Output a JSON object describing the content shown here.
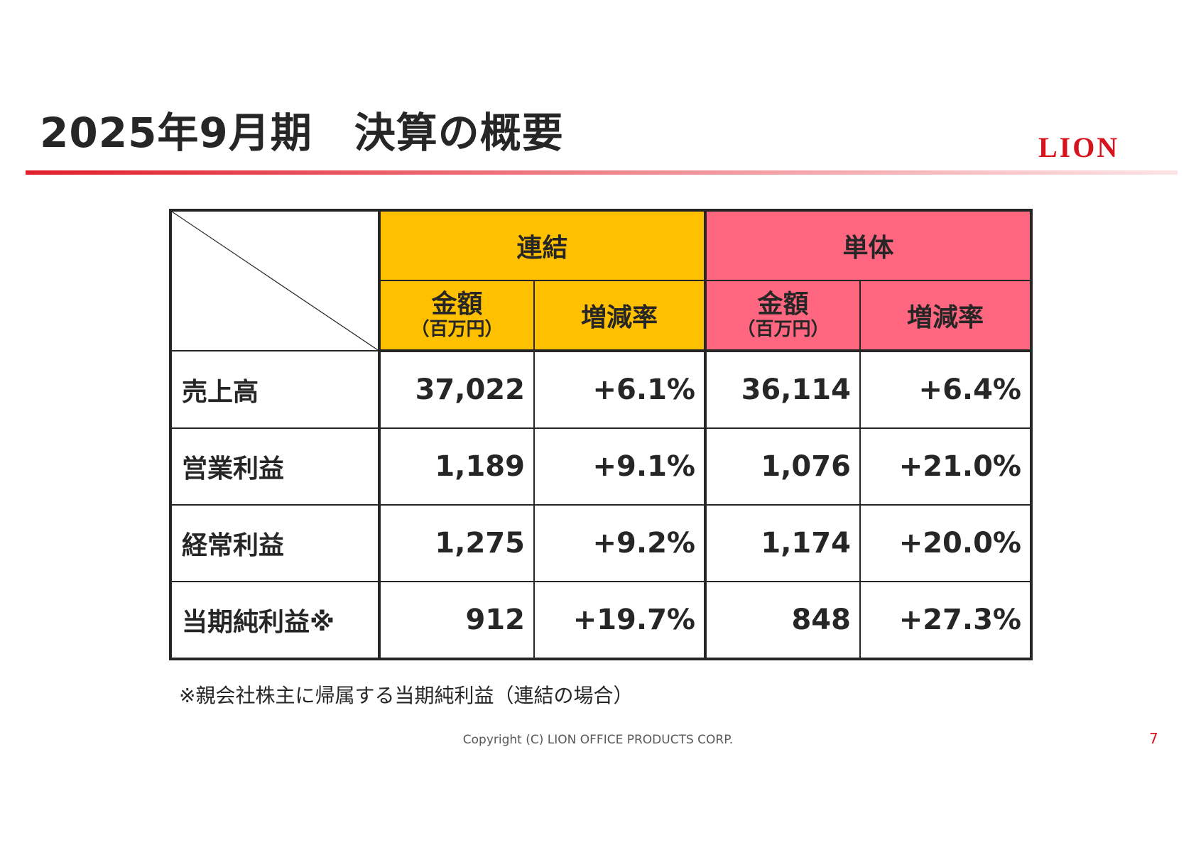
{
  "title": "2025年9月期　決算の概要",
  "logo": "LION",
  "table": {
    "groups": {
      "consolidated": "連結",
      "standalone": "単体"
    },
    "subheaders": {
      "amount": "金額",
      "unit": "（百万円）",
      "change": "増減率"
    },
    "rows": [
      {
        "label": "売上高",
        "cons_amount": "37,022",
        "cons_change": "+6.1%",
        "sol_amount": "36,114",
        "sol_change": "+6.4%"
      },
      {
        "label": "営業利益",
        "cons_amount": "1,189",
        "cons_change": "+9.1%",
        "sol_amount": "1,076",
        "sol_change": "+21.0%"
      },
      {
        "label": "経常利益",
        "cons_amount": "1,275",
        "cons_change": "+9.2%",
        "sol_amount": "1,174",
        "sol_change": "+20.0%"
      },
      {
        "label": "当期純利益※",
        "cons_amount": "912",
        "cons_change": "+19.7%",
        "sol_amount": "848",
        "sol_change": "+27.3%"
      }
    ]
  },
  "note": "※親会社株主に帰属する当期純利益（連結の場合）",
  "copyright": "Copyright (C) LION OFFICE PRODUCTS CORP.",
  "page_number": "7",
  "colors": {
    "consolidated_fill": "#ffc000",
    "standalone_fill": "#ff667f",
    "accent_red": "#d7141e",
    "text": "#262626"
  }
}
